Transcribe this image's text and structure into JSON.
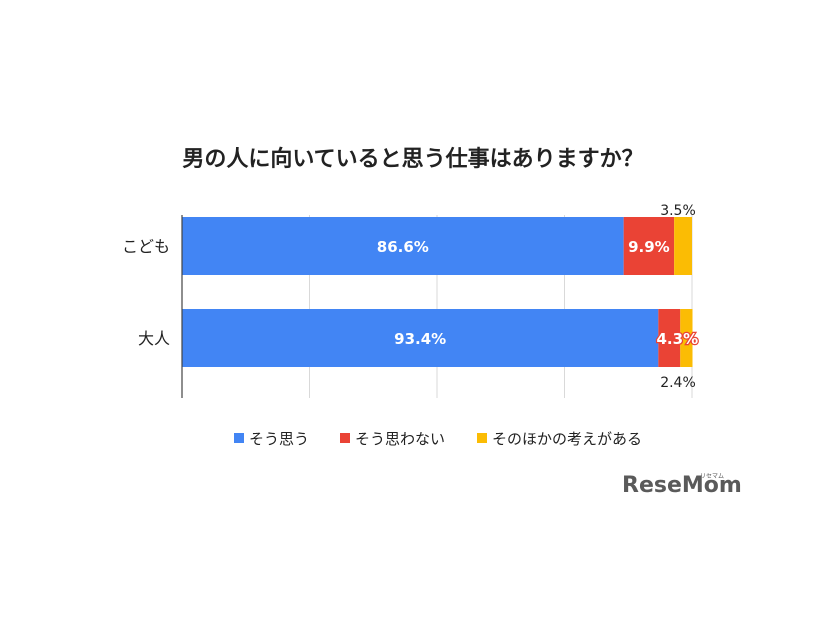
{
  "chart_data": {
    "type": "bar",
    "orientation": "horizontal",
    "stacked": true,
    "title": "男の人に向いていると思う仕事はありますか？",
    "categories": [
      "こども",
      "大人"
    ],
    "series": [
      {
        "name": "そう思う",
        "values": [
          86.6,
          93.4
        ],
        "labels": [
          "86.6%",
          "93.4%"
        ],
        "color": "#4285f4"
      },
      {
        "name": "そう思わない",
        "values": [
          9.9,
          4.3
        ],
        "labels": [
          "9.9%",
          "4.3%"
        ],
        "color": "#ea4335"
      },
      {
        "name": "そのほかの考えがある",
        "values": [
          3.5,
          2.4
        ],
        "labels": [
          "3.5%",
          "2.4%"
        ],
        "color": "#fbbc04"
      }
    ],
    "xlim": [
      0,
      100
    ],
    "grid": true,
    "legend": "bottom"
  },
  "brand": {
    "logo": "ReseMom",
    "ruby": "リセマム"
  }
}
